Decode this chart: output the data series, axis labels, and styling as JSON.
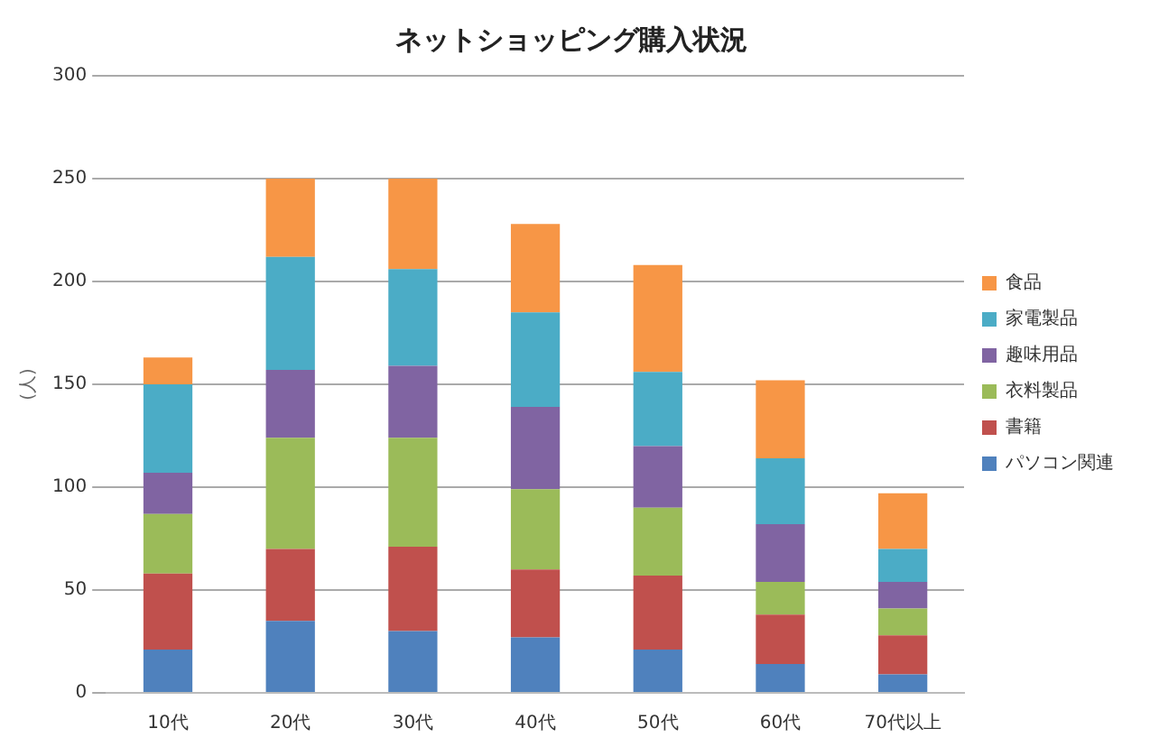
{
  "chart_data": {
    "type": "bar",
    "stacked": true,
    "title": "ネットショッピング購入状況",
    "ylabel": "(人)",
    "categories": [
      "10代",
      "20代",
      "30代",
      "40代",
      "50代",
      "60代",
      "70代以上"
    ],
    "series": [
      {
        "name": "パソコン関連",
        "color": "#4f81bd",
        "values": [
          21,
          35,
          30,
          27,
          21,
          14,
          9
        ]
      },
      {
        "name": "書籍",
        "color": "#c0504d",
        "values": [
          37,
          35,
          41,
          33,
          36,
          24,
          19
        ]
      },
      {
        "name": "衣料製品",
        "color": "#9bbb59",
        "values": [
          29,
          54,
          53,
          39,
          33,
          16,
          13
        ]
      },
      {
        "name": "趣味用品",
        "color": "#8064a2",
        "values": [
          20,
          33,
          35,
          40,
          30,
          28,
          13
        ]
      },
      {
        "name": "家電製品",
        "color": "#4bacc6",
        "values": [
          43,
          55,
          47,
          46,
          36,
          32,
          16
        ]
      },
      {
        "name": "食品",
        "color": "#f79646",
        "values": [
          13,
          38,
          44,
          43,
          52,
          38,
          27
        ]
      }
    ],
    "ylim": [
      0,
      300
    ],
    "yticks": [
      0,
      50,
      100,
      150,
      200,
      250,
      300
    ],
    "grid": "y",
    "legend": "right"
  }
}
